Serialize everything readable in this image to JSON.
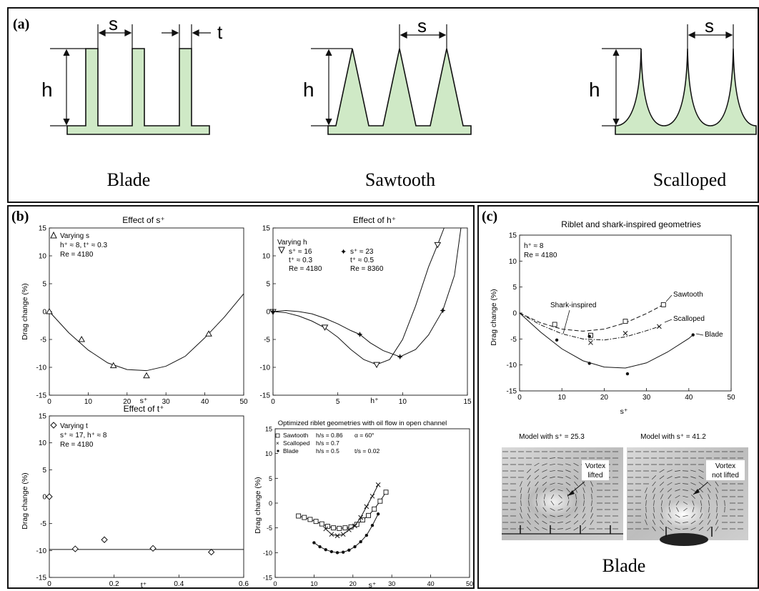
{
  "panel_a": {
    "label": "(a)",
    "dim_h": "h",
    "dim_s": "s",
    "dim_t": "t",
    "names": [
      "Blade",
      "Sawtooth",
      "Scalloped"
    ],
    "fill_color": "#cfe9c6"
  },
  "panel_b": {
    "label": "(b)",
    "subplots": [
      {
        "title": "Effect of s⁺",
        "xlabel": "s⁺",
        "ylabel": "Drag change (%)",
        "legend": [
          "Varying s",
          "h⁺ ≈ 8, t⁺ ≈ 0.3",
          "Re = 4180"
        ],
        "marker": "triangle-up"
      },
      {
        "title": "Effect of h⁺",
        "xlabel": "h⁺",
        "ylabel": "",
        "legend_a": [
          "Varying h",
          "s⁺ ≈ 16",
          "t⁺ ≈ 0.3",
          "Re = 4180"
        ],
        "legend_b": [
          "s⁺ ≈ 23",
          "t⁺ ≈ 0.5",
          "Re = 8360"
        ]
      },
      {
        "title": "Effect of t⁺",
        "xlabel": "t⁺",
        "ylabel": "Drag change (%)",
        "legend": [
          "Varying t",
          "s⁺ ≈ 17, h⁺ ≈ 8",
          "Re = 4180"
        ],
        "marker": "diamond"
      },
      {
        "title": "Optimized riblet geometries with oil flow in open channel",
        "xlabel": "s⁺",
        "ylabel": "Drag change (%)",
        "legend": [
          {
            "name": "Sawtooth",
            "p1": "h/s = 0.86",
            "p2": "α = 60°"
          },
          {
            "name": "Scalloped",
            "p1": "h/s = 0.7",
            "p2": ""
          },
          {
            "name": "Blade",
            "p1": "h/s = 0.5",
            "p2": "t/s = 0.02"
          }
        ]
      }
    ]
  },
  "panel_c": {
    "label": "(c)",
    "title": "Riblet and shark-inspired geometries",
    "xlabel": "s⁺",
    "ylabel": "Drag change (%)",
    "legend": [
      "h⁺ ≈ 8",
      "Re = 4180"
    ],
    "annotations": [
      "Shark-inspired",
      "Sawtooth",
      "Scalloped",
      "Blade"
    ],
    "model_left": "Model with s⁺ = 25.3",
    "model_right": "Model with s⁺ = 41.2",
    "vortex_left": [
      "Vortex",
      "lifted"
    ],
    "vortex_right": [
      "Vortex",
      "not lifted"
    ],
    "caption": "Blade"
  },
  "chart_data": [
    {
      "type": "scatter",
      "title": "Effect of s⁺",
      "xlabel": "s⁺",
      "ylabel": "Drag change (%)",
      "xlim": [
        0,
        50
      ],
      "ylim": [
        -15,
        15
      ],
      "xticks": [
        0,
        10,
        20,
        30,
        40,
        50
      ],
      "yticks": [
        15,
        10,
        5,
        0,
        -5,
        -10,
        -15
      ],
      "series": [
        {
          "name": "Varying s",
          "x": [
            0,
            8.3,
            16.5,
            25,
            41
          ],
          "y": [
            0,
            -5,
            -9.7,
            -11.5,
            -4
          ]
        }
      ],
      "fit": {
        "x": [
          0,
          5,
          10,
          15,
          20,
          25,
          30,
          35,
          40,
          45,
          50
        ],
        "y": [
          0,
          -3.8,
          -6.9,
          -9.2,
          -10.4,
          -10.6,
          -9.8,
          -8.0,
          -4.7,
          -1.0,
          3.2
        ]
      }
    },
    {
      "type": "line",
      "title": "Effect of h⁺",
      "xlabel": "h⁺",
      "ylabel": "",
      "xlim": [
        0,
        15
      ],
      "ylim": [
        -15,
        15
      ],
      "xticks": [
        0,
        5,
        10,
        15
      ],
      "yticks": [
        15,
        10,
        5,
        0,
        -5,
        -10,
        -15
      ],
      "series": [
        {
          "name": "s⁺ ≈ 16",
          "x": [
            0,
            4,
            8,
            12.7
          ],
          "y": [
            0,
            -2.8,
            -9.5,
            12
          ],
          "fit_x": [
            0,
            1,
            2,
            3,
            4,
            5,
            6,
            7,
            8,
            9,
            10,
            11,
            12,
            12.7,
            13.2
          ],
          "fit_y": [
            0,
            -0.2,
            -0.8,
            -1.7,
            -2.9,
            -4.6,
            -6.8,
            -8.6,
            -9.5,
            -8.6,
            -5.0,
            1.0,
            8.0,
            12.0,
            15.0
          ]
        },
        {
          "name": "s⁺ ≈ 23",
          "x": [
            0,
            6.7,
            9.8,
            13.1
          ],
          "y": [
            0,
            -4.1,
            -8.1,
            0.2
          ],
          "fit_x": [
            0,
            1,
            2,
            3,
            4,
            5,
            6,
            6.7,
            7.5,
            8.5,
            9.8,
            11,
            12,
            13.1,
            14,
            14.5
          ],
          "fit_y": [
            0,
            0.2,
            0,
            -0.4,
            -1.2,
            -2.2,
            -3.4,
            -4.1,
            -5.6,
            -7.0,
            -8.1,
            -6.8,
            -4.2,
            0.2,
            6.5,
            15
          ]
        }
      ]
    },
    {
      "type": "scatter",
      "title": "Effect of t⁺",
      "xlabel": "t⁺",
      "ylabel": "Drag change (%)",
      "xlim": [
        0,
        0.6
      ],
      "ylim": [
        -15,
        15
      ],
      "xticks": [
        0,
        0.2,
        0.4,
        0.6
      ],
      "yticks": [
        15,
        10,
        5,
        0,
        -5,
        -10,
        -15
      ],
      "series": [
        {
          "name": "Varying t",
          "x": [
            0,
            0.08,
            0.17,
            0.32,
            0.5
          ],
          "y": [
            0,
            -9.7,
            -8,
            -9.6,
            -10.3
          ]
        }
      ],
      "fit": {
        "x": [
          0,
          0.6
        ],
        "y": [
          -9.8,
          -9.8
        ]
      }
    },
    {
      "type": "line",
      "title": "Optimized riblet geometries with oil flow in open channel",
      "xlabel": "s⁺",
      "ylabel": "Drag change (%)",
      "xlim": [
        0,
        50
      ],
      "ylim": [
        -15,
        15
      ],
      "xticks": [
        0,
        10,
        20,
        30,
        40,
        50
      ],
      "yticks": [
        15,
        10,
        5,
        0,
        -5,
        -10,
        -15
      ],
      "series": [
        {
          "name": "Sawtooth",
          "marker": "square",
          "x": [
            6,
            7.5,
            9,
            10.5,
            12,
            13.5,
            15,
            16.5,
            18,
            19.5,
            21,
            22.5,
            24,
            25.5,
            27,
            28.5
          ],
          "y": [
            -2.6,
            -2.9,
            -3.3,
            -3.7,
            -4.2,
            -4.7,
            -5.0,
            -5.1,
            -5.0,
            -4.8,
            -4.3,
            -3.4,
            -2.5,
            -1.2,
            0.4,
            2.2
          ]
        },
        {
          "name": "Scalloped",
          "marker": "x",
          "x": [
            13,
            14.5,
            16,
            17.5,
            19,
            20.5,
            22,
            23.5,
            25,
            26.5
          ],
          "y": [
            -5.2,
            -6.3,
            -6.6,
            -6.3,
            -5.4,
            -4.6,
            -2.9,
            -0.7,
            1.4,
            3.7
          ]
        },
        {
          "name": "Blade",
          "marker": "dot",
          "x": [
            10,
            11.5,
            13,
            14.5,
            16,
            17.5,
            19,
            20.5,
            22,
            23.5,
            25,
            26.5
          ],
          "y": [
            -8.0,
            -8.8,
            -9.4,
            -9.8,
            -10.0,
            -9.9,
            -9.5,
            -8.8,
            -7.8,
            -6.5,
            -4.5,
            -2.2
          ]
        }
      ]
    },
    {
      "type": "line",
      "title": "Riblet and shark-inspired geometries",
      "xlabel": "s⁺",
      "ylabel": "Drag change (%)",
      "xlim": [
        0,
        50
      ],
      "ylim": [
        -15,
        15
      ],
      "xticks": [
        0,
        10,
        20,
        30,
        40,
        50
      ],
      "yticks": [
        15,
        10,
        5,
        0,
        -5,
        -10,
        -15
      ],
      "series": [
        {
          "name": "Sawtooth",
          "marker": "square",
          "style": "dashed",
          "x": [
            8.3,
            16.8,
            25,
            34
          ],
          "y": [
            -2.2,
            -4.3,
            -1.6,
            1.6
          ],
          "fit_x": [
            0,
            5,
            10,
            15,
            20,
            25,
            30,
            34
          ],
          "fit_y": [
            0,
            -1.9,
            -3.1,
            -3.5,
            -3.1,
            -1.9,
            -0.1,
            1.6
          ]
        },
        {
          "name": "Scalloped",
          "marker": "x",
          "style": "dashdot",
          "x": [
            16.8,
            25,
            33
          ],
          "y": [
            -5.7,
            -3.9,
            -2.6
          ],
          "fit_x": [
            0,
            5,
            10,
            15,
            20,
            25,
            30,
            33
          ],
          "fit_y": [
            0,
            -2.3,
            -4.0,
            -5.0,
            -5.2,
            -4.6,
            -3.4,
            -2.6
          ]
        },
        {
          "name": "Blade",
          "marker": "dot",
          "style": "solid",
          "x": [
            8.8,
            16.5,
            25.5,
            41
          ],
          "y": [
            -5.2,
            -9.7,
            -11.7,
            -4.2
          ],
          "fit_x": [
            0,
            5,
            10,
            15,
            20,
            25,
            30,
            35,
            40,
            41
          ],
          "fit_y": [
            0,
            -3.7,
            -6.9,
            -9.2,
            -10.4,
            -10.6,
            -9.6,
            -7.5,
            -4.9,
            -4.2
          ]
        },
        {
          "name": "Shark-inspired",
          "marker": "dot",
          "x": [
            16.5
          ],
          "y": [
            -4.5
          ]
        }
      ]
    }
  ]
}
